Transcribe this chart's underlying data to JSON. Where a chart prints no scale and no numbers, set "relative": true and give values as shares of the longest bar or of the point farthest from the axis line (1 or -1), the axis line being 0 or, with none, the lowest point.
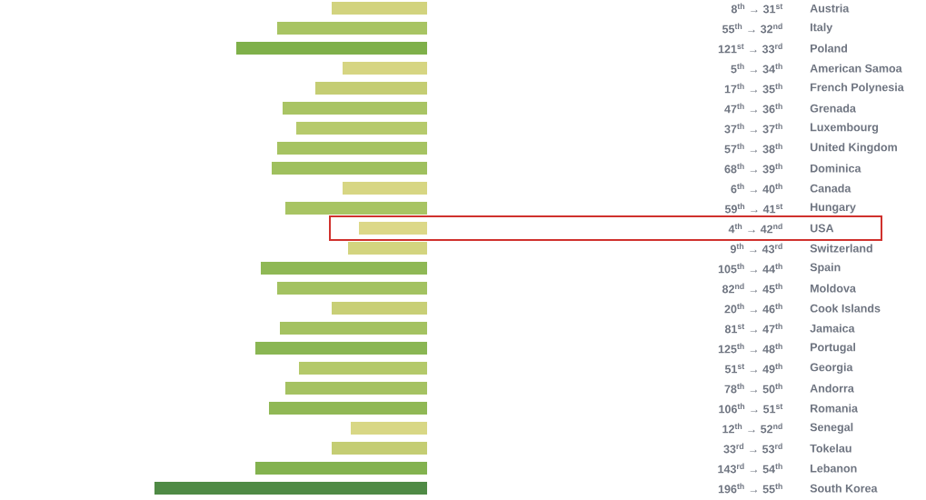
{
  "chart_data": {
    "type": "bar",
    "orientation": "horizontal",
    "relative": true,
    "categories": [
      "Austria",
      "Italy",
      "Poland",
      "American Samoa",
      "French Polynesia",
      "Grenada",
      "Luxembourg",
      "United Kingdom",
      "Dominica",
      "Canada",
      "Hungary",
      "USA",
      "Switzerland",
      "Spain",
      "Moldova",
      "Cook Islands",
      "Jamaica",
      "Portugal",
      "Georgia",
      "Andorra",
      "Romania",
      "Senegal",
      "Tokelau",
      "Lebanon",
      "South Korea"
    ],
    "values": [
      0.35,
      0.55,
      0.7,
      0.31,
      0.41,
      0.53,
      0.48,
      0.55,
      0.57,
      0.31,
      0.52,
      0.25,
      0.29,
      0.61,
      0.55,
      0.35,
      0.54,
      0.63,
      0.47,
      0.52,
      0.58,
      0.28,
      0.35,
      0.63,
      1
    ],
    "colors": [
      "#d2d37e",
      "#a8c463",
      "#7fb04a",
      "#d6d582",
      "#c4cd73",
      "#a9c464",
      "#b6ca6c",
      "#a6c362",
      "#9fc05e",
      "#d7d683",
      "#a8c463",
      "#dcd888",
      "#d3d47f",
      "#8fb855",
      "#a3c261",
      "#c8cf76",
      "#a4c261",
      "#8ab653",
      "#b4c96a",
      "#a5c262",
      "#90b855",
      "#d8d785",
      "#c4cd73",
      "#83b24f",
      "#4f8a45"
    ],
    "annotations": [
      "8$^{th}$ → 31$^{st}$",
      "55$^{th}$ → 32$^{nd}$",
      "121$^{st}$ → 33$^{rd}$",
      "5$^{th}$ → 34$^{th}$",
      "17$^{th}$ → 35$^{th}$",
      "47$^{th}$ → 36$^{th}$",
      "37$^{th}$ → 37$^{th}$",
      "57$^{th}$ → 38$^{th}$",
      "68$^{th}$ → 39$^{th}$",
      "6$^{th}$ → 40$^{th}$",
      "59$^{th}$ → 41$^{st}$",
      "4$^{th}$ → 42$^{nd}$",
      "9$^{th}$ → 43$^{rd}$",
      "105$^{th}$ → 44$^{th}$",
      "82$^{nd}$ → 45$^{th}$",
      "20$^{th}$ → 46$^{th}$",
      "81$^{st}$ → 47$^{th}$",
      "125$^{th}$ → 48$^{th}$",
      "51$^{st}$ → 49$^{th}$",
      "78$^{th}$ → 50$^{th}$",
      "106$^{th}$ → 51$^{st}$",
      "12$^{th}$ → 52$^{nd}$",
      "33$^{rd}$ → 53$^{rd}$",
      "143$^{rd}$ → 54$^{th}$",
      "196$^{th}$ → 55$^{th}$"
    ]
  }
}
